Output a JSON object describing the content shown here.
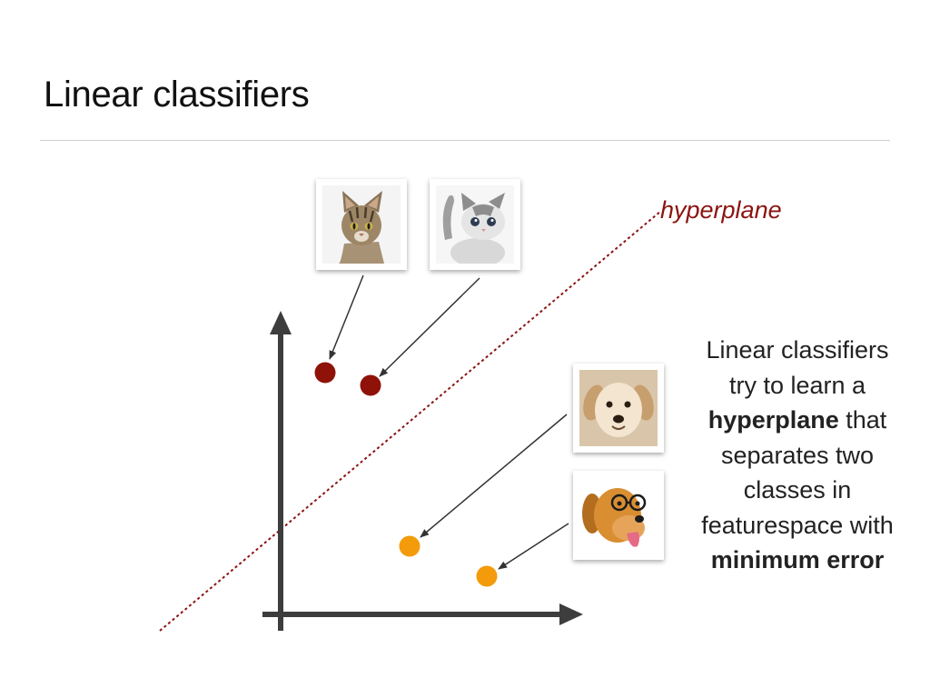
{
  "slide": {
    "title": "Linear classifiers"
  },
  "diagram": {
    "hyperplane_label": "hyperplane",
    "line_color": "#8a1410",
    "axis_color": "#3d3d3d",
    "class_a": {
      "image_icons": [
        "cat-photo-icon",
        "kitten-photo-icon"
      ],
      "point_color": "#8f1208"
    },
    "class_b": {
      "image_icons": [
        "puppy-photo-icon",
        "dog-with-glasses-photo-icon"
      ],
      "point_color": "#f39b0b"
    }
  },
  "description": {
    "part1": "Linear classifiers try to learn a ",
    "bold1": "hyperplane",
    "part2": " that separates two classes in featurespace with ",
    "bold2": "minimum error"
  }
}
